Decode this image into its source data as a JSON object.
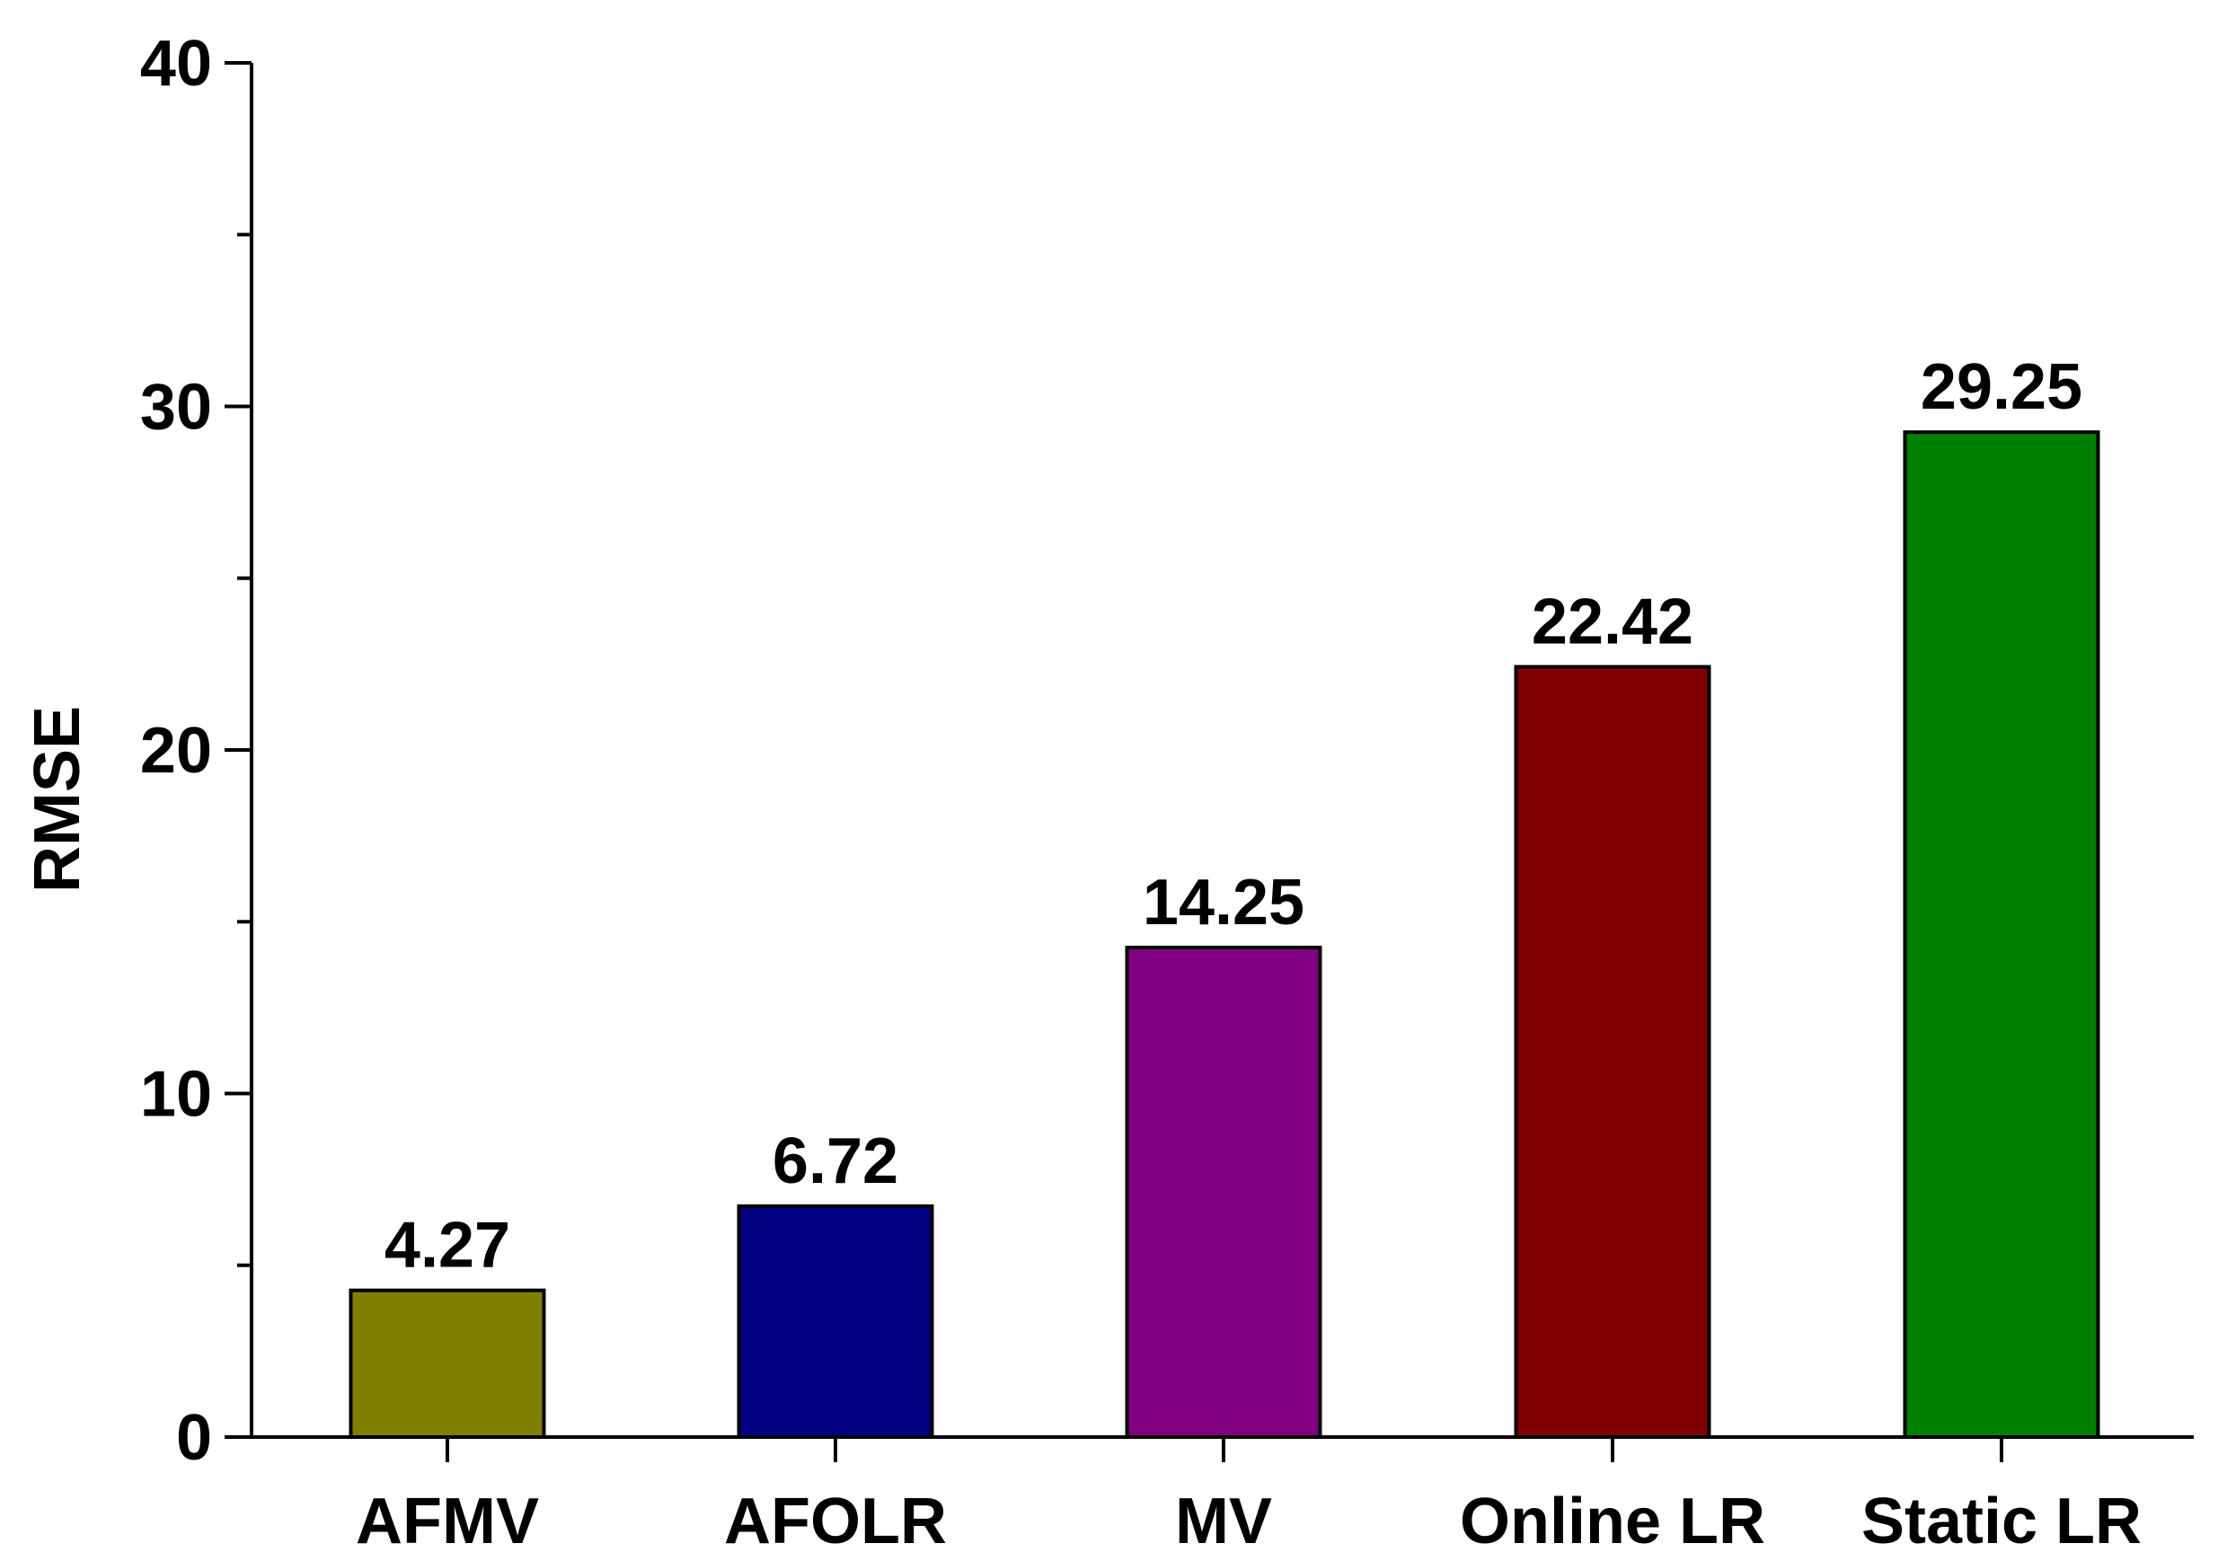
{
  "chart_data": {
    "type": "bar",
    "title": "",
    "xlabel": "",
    "ylabel": "RMSE",
    "categories": [
      "AFMV",
      "AFOLR",
      "MV",
      "Online LR",
      "Static LR"
    ],
    "values": [
      4.27,
      6.72,
      14.25,
      22.42,
      29.25
    ],
    "data_labels": [
      "4.27",
      "6.72",
      "14.25",
      "22.42",
      "29.25"
    ],
    "colors": [
      "#808000",
      "#000080",
      "#800080",
      "#800000",
      "#008000"
    ],
    "ylim": [
      0,
      40
    ],
    "yticks": [
      0,
      10,
      20,
      30,
      40
    ],
    "yticks_minor": [
      5,
      15,
      25,
      35
    ],
    "ytick_labels": [
      "0",
      "10",
      "20",
      "30",
      "40"
    ],
    "grid": false,
    "legend": "none"
  }
}
